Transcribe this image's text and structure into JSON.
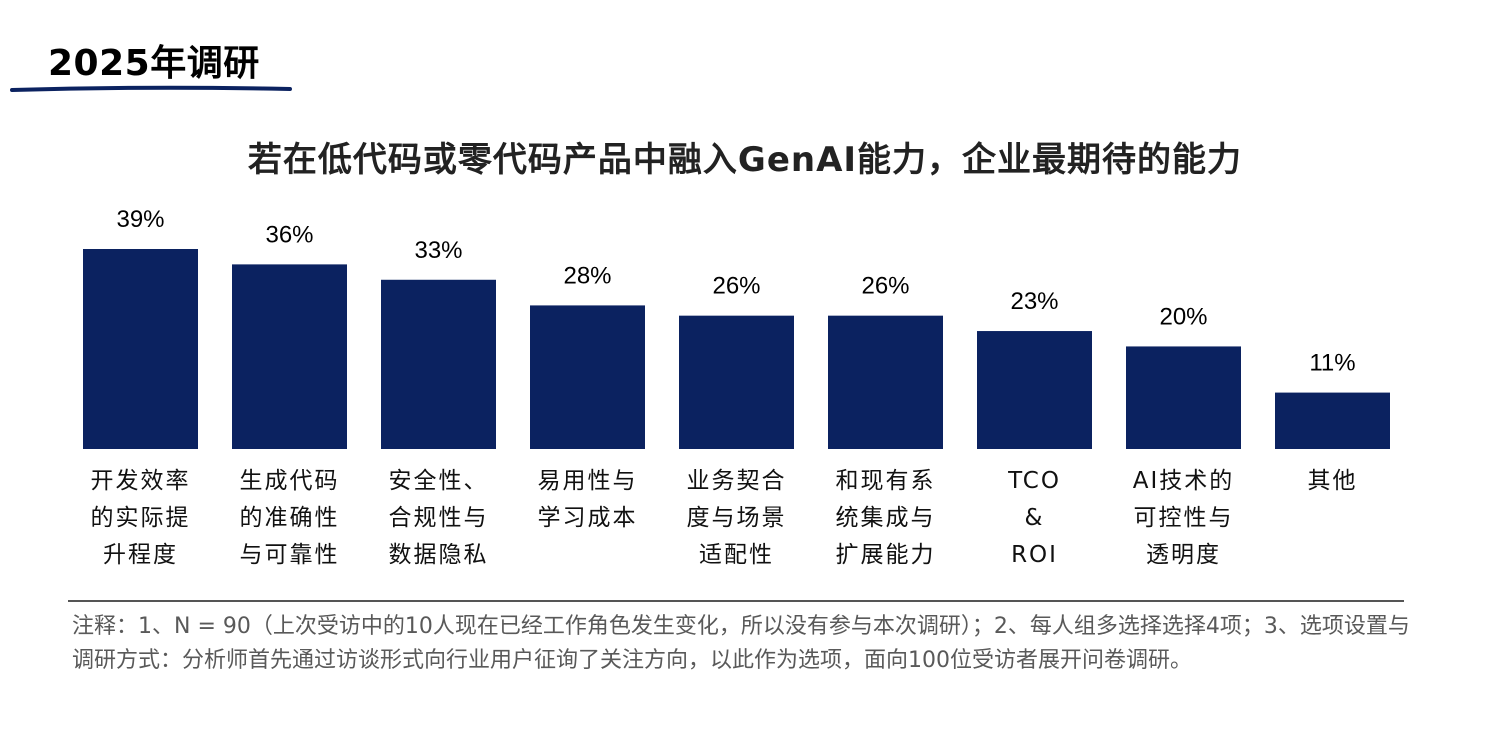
{
  "header": {
    "title": "2025年调研"
  },
  "colors": {
    "bar": "#0b2260",
    "underline": "#0b2260"
  },
  "chart_data": {
    "type": "bar",
    "title": "若在低代码或零代码产品中融入GenAI能力，企业最期待的能力",
    "categories": [
      [
        "开发效率",
        "的实际提",
        "升程度"
      ],
      [
        "生成代码",
        "的准确性",
        "与可靠性"
      ],
      [
        "安全性、",
        "合规性与",
        "数据隐私"
      ],
      [
        "易用性与",
        "学习成本"
      ],
      [
        "业务契合",
        "度与场景",
        "适配性"
      ],
      [
        "和现有系",
        "统集成与",
        "扩展能力"
      ],
      [
        "TCO",
        "&",
        "ROI"
      ],
      [
        "AI技术的",
        "可控性与",
        "透明度"
      ],
      [
        "其他"
      ]
    ],
    "values": [
      39,
      36,
      33,
      28,
      26,
      26,
      23,
      20,
      11
    ],
    "value_labels": [
      "39%",
      "36%",
      "33%",
      "28%",
      "26%",
      "26%",
      "23%",
      "20%",
      "11%"
    ],
    "unit": "%",
    "ylim": [
      0,
      39
    ],
    "grid": false,
    "legend": "none"
  },
  "note": {
    "text": "注释：1、N = 90（上次受访中的10人现在已经工作角色发生变化，所以没有参与本次调研）；2、每人组多选择选择4项；3、选项设置与调研方式：分析师首先通过访谈形式向行业用户征询了关注方向，以此作为选项，面向100位受访者展开问卷调研。"
  }
}
